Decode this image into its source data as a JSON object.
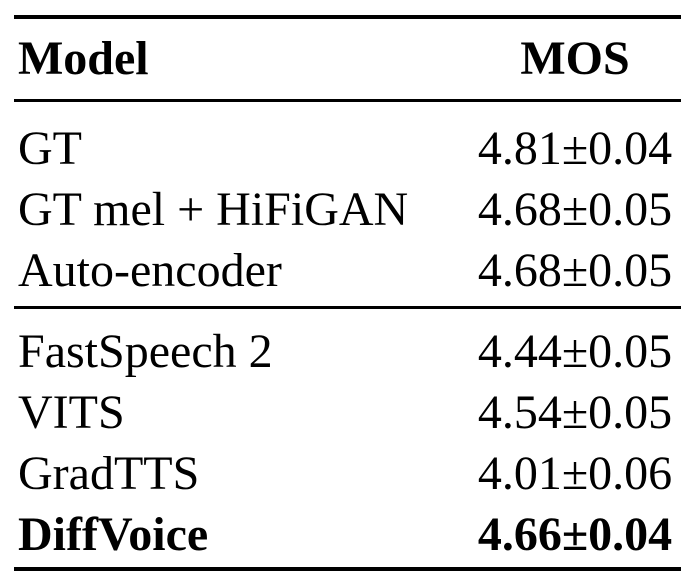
{
  "colors": {
    "text": "#000000",
    "background": "#ffffff",
    "rule": "#000000"
  },
  "table": {
    "columns": [
      {
        "label": "Model"
      },
      {
        "label": "MOS"
      }
    ],
    "sections": [
      {
        "rows": [
          {
            "model": "GT",
            "mos": "4.81±0.04",
            "bold": false
          },
          {
            "model": "GT mel + HiFiGAN",
            "mos": "4.68±0.05",
            "bold": false
          },
          {
            "model": "Auto-encoder",
            "mos": "4.68±0.05",
            "bold": false
          }
        ]
      },
      {
        "rows": [
          {
            "model": "FastSpeech 2",
            "mos": "4.44±0.05",
            "bold": false
          },
          {
            "model": "VITS",
            "mos": "4.54±0.05",
            "bold": false
          },
          {
            "model": "GradTTS",
            "mos": "4.01±0.06",
            "bold": false
          },
          {
            "model": "DiffVoice",
            "mos": "4.66±0.04",
            "bold": true
          }
        ]
      }
    ]
  }
}
